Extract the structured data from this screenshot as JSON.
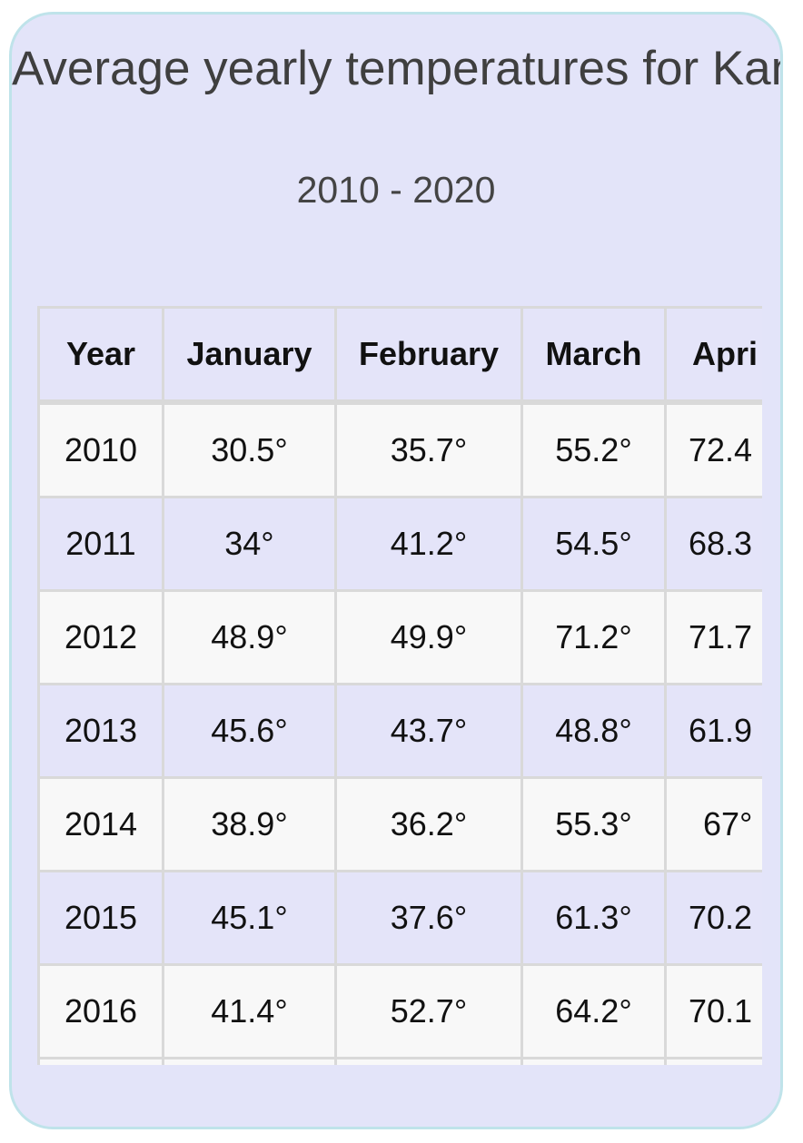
{
  "title": "Average yearly temperatures for Kansas City, MO",
  "subtitle": "2010 - 2020",
  "table": {
    "headers": [
      "Year",
      "January",
      "February",
      "March",
      "Apri"
    ],
    "rows": [
      [
        "2010",
        "30.5°",
        "35.7°",
        "55.2°",
        "72.4"
      ],
      [
        "2011",
        "34°",
        "41.2°",
        "54.5°",
        "68.3"
      ],
      [
        "2012",
        "48.9°",
        "49.9°",
        "71.2°",
        "71.7"
      ],
      [
        "2013",
        "45.6°",
        "43.7°",
        "48.8°",
        "61.9"
      ],
      [
        "2014",
        "38.9°",
        "36.2°",
        "55.3°",
        "67°"
      ],
      [
        "2015",
        "45.1°",
        "37.6°",
        "61.3°",
        "70.2"
      ],
      [
        "2016",
        "41.4°",
        "52.7°",
        "64.2°",
        "70.1"
      ]
    ]
  },
  "colors": {
    "card_background": "#e3e4f9",
    "card_border": "#bfe3ea",
    "row_light": "#f8f8f8",
    "row_tint": "#e4e4f9",
    "grid": "#d9d9d9"
  }
}
